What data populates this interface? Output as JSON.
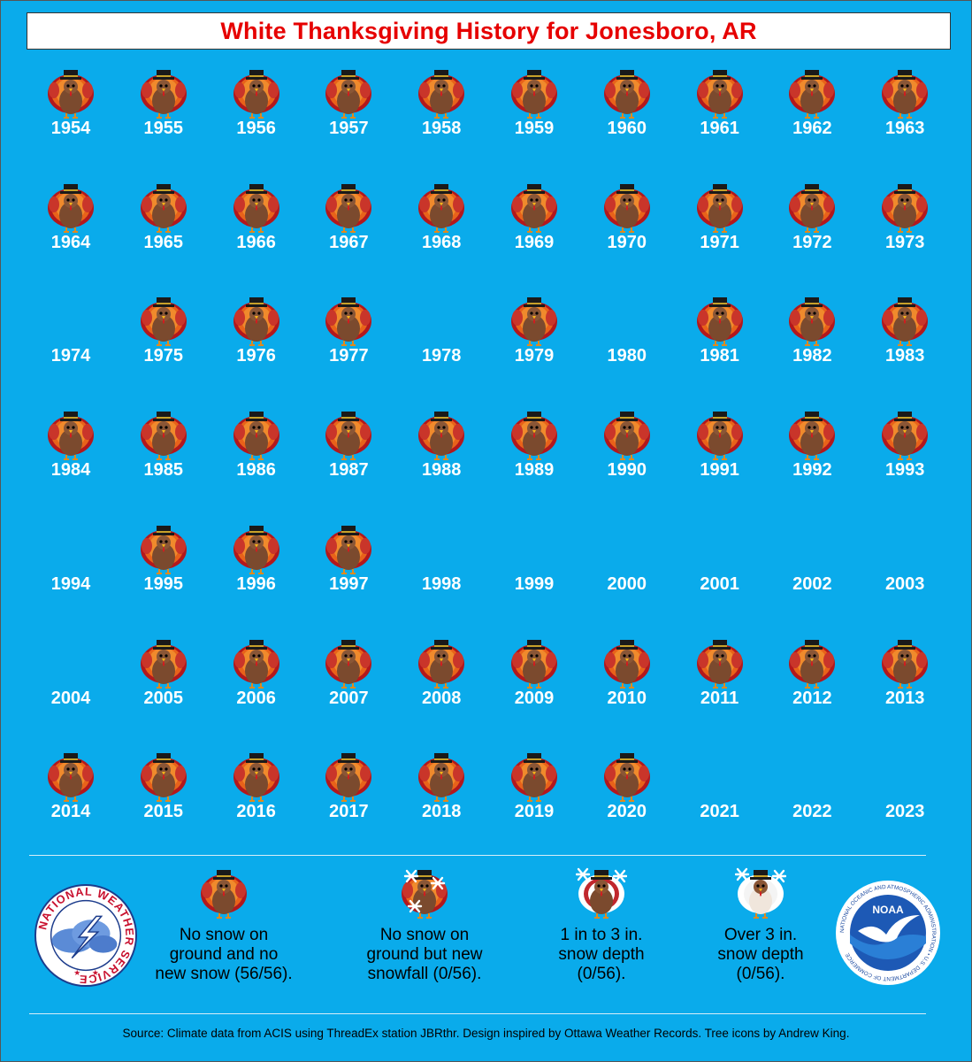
{
  "title": "White Thanksgiving History for Jonesboro, AR",
  "chart_data": {
    "type": "table",
    "description_values": "Each year: turkey icon shown when no snow on ground and no new snow; blank when no data shown",
    "years": [
      {
        "year": "1954",
        "icon": true
      },
      {
        "year": "1955",
        "icon": true
      },
      {
        "year": "1956",
        "icon": true
      },
      {
        "year": "1957",
        "icon": true
      },
      {
        "year": "1958",
        "icon": true
      },
      {
        "year": "1959",
        "icon": true
      },
      {
        "year": "1960",
        "icon": true
      },
      {
        "year": "1961",
        "icon": true
      },
      {
        "year": "1962",
        "icon": true
      },
      {
        "year": "1963",
        "icon": true
      },
      {
        "year": "1964",
        "icon": true
      },
      {
        "year": "1965",
        "icon": true
      },
      {
        "year": "1966",
        "icon": true
      },
      {
        "year": "1967",
        "icon": true
      },
      {
        "year": "1968",
        "icon": true
      },
      {
        "year": "1969",
        "icon": true
      },
      {
        "year": "1970",
        "icon": true
      },
      {
        "year": "1971",
        "icon": true
      },
      {
        "year": "1972",
        "icon": true
      },
      {
        "year": "1973",
        "icon": true
      },
      {
        "year": "1974",
        "icon": false
      },
      {
        "year": "1975",
        "icon": true
      },
      {
        "year": "1976",
        "icon": true
      },
      {
        "year": "1977",
        "icon": true
      },
      {
        "year": "1978",
        "icon": false
      },
      {
        "year": "1979",
        "icon": true
      },
      {
        "year": "1980",
        "icon": false
      },
      {
        "year": "1981",
        "icon": true
      },
      {
        "year": "1982",
        "icon": true
      },
      {
        "year": "1983",
        "icon": true
      },
      {
        "year": "1984",
        "icon": true
      },
      {
        "year": "1985",
        "icon": true
      },
      {
        "year": "1986",
        "icon": true
      },
      {
        "year": "1987",
        "icon": true
      },
      {
        "year": "1988",
        "icon": true
      },
      {
        "year": "1989",
        "icon": true
      },
      {
        "year": "1990",
        "icon": true
      },
      {
        "year": "1991",
        "icon": true
      },
      {
        "year": "1992",
        "icon": true
      },
      {
        "year": "1993",
        "icon": true
      },
      {
        "year": "1994",
        "icon": false
      },
      {
        "year": "1995",
        "icon": true
      },
      {
        "year": "1996",
        "icon": true
      },
      {
        "year": "1997",
        "icon": true
      },
      {
        "year": "1998",
        "icon": false
      },
      {
        "year": "1999",
        "icon": false
      },
      {
        "year": "2000",
        "icon": false
      },
      {
        "year": "2001",
        "icon": false
      },
      {
        "year": "2002",
        "icon": false
      },
      {
        "year": "2003",
        "icon": false
      },
      {
        "year": "2004",
        "icon": false
      },
      {
        "year": "2005",
        "icon": true
      },
      {
        "year": "2006",
        "icon": true
      },
      {
        "year": "2007",
        "icon": true
      },
      {
        "year": "2008",
        "icon": true
      },
      {
        "year": "2009",
        "icon": true
      },
      {
        "year": "2010",
        "icon": true
      },
      {
        "year": "2011",
        "icon": true
      },
      {
        "year": "2012",
        "icon": true
      },
      {
        "year": "2013",
        "icon": true
      },
      {
        "year": "2014",
        "icon": true
      },
      {
        "year": "2015",
        "icon": true
      },
      {
        "year": "2016",
        "icon": true
      },
      {
        "year": "2017",
        "icon": true
      },
      {
        "year": "2018",
        "icon": true
      },
      {
        "year": "2019",
        "icon": true
      },
      {
        "year": "2020",
        "icon": true
      },
      {
        "year": "2021",
        "icon": false
      },
      {
        "year": "2022",
        "icon": false
      },
      {
        "year": "2023",
        "icon": false
      }
    ]
  },
  "legend": [
    {
      "icon": "turkey-icon",
      "text": "No snow on\nground and no\nnew snow (56/56)."
    },
    {
      "icon": "turkey-snowflake-icon",
      "text": "No snow on\nground but new\nsnowfall (0/56)."
    },
    {
      "icon": "turkey-light-snow-icon",
      "text": "1 in to 3 in.\nsnow depth\n(0/56)."
    },
    {
      "icon": "turkey-heavy-snow-icon",
      "text": "Over 3 in.\nsnow depth\n(0/56)."
    }
  ],
  "logos": {
    "nws_text": "NATIONAL WEATHER SERVICE",
    "noaa_text": "NOAA",
    "noaa_ring_text": "NATIONAL OCEANIC AND ATMOSPHERIC ADMINISTRATION • U.S. DEPARTMENT OF COMMERCE"
  },
  "source": "Source: Climate data from ACIS using ThreadEx station JBRthr. Design inspired by Ottawa Weather Records. Tree icons by Andrew King.",
  "colors": {
    "background": "#0aabeb",
    "title": "#e60000",
    "year_text": "#ffffff"
  }
}
